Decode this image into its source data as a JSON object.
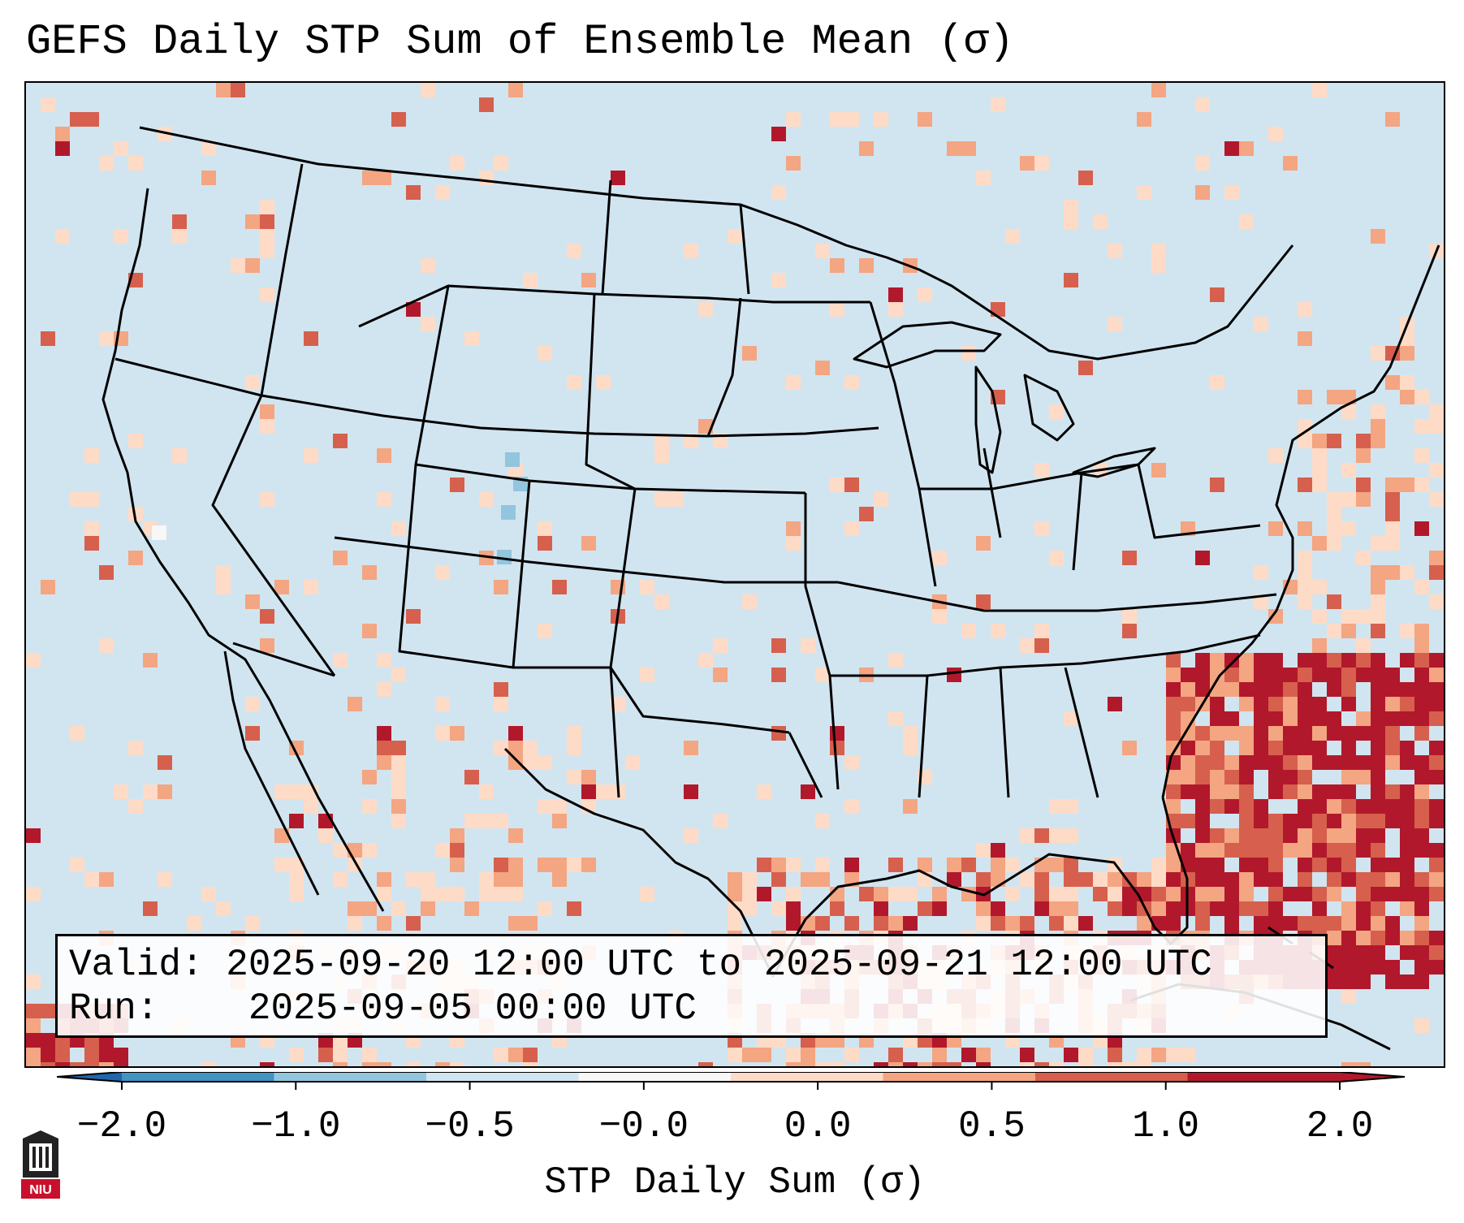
{
  "title": "GEFS Daily STP Sum of Ensemble Mean (σ)",
  "info": {
    "valid_prefix": "Valid:",
    "valid_value": "2025-09-20 12:00 UTC to 2025-09-21 12:00 UTC",
    "run_prefix": "Run:",
    "run_value": "2025-09-05 00:00 UTC"
  },
  "colorbar": {
    "label": "STP Daily Sum (σ)",
    "ticks": [
      "−2.0",
      "−1.0",
      "−0.5",
      "−0.0",
      "0.0",
      "0.5",
      "1.0",
      "2.0"
    ],
    "colors": [
      "#4393c3",
      "#92c5de",
      "#d1e5f0",
      "#f7f7f7",
      "#fddbc7",
      "#f4a582",
      "#d6604d",
      "#b2182b"
    ],
    "extend_low_color": "#2166ac",
    "extend_high_color": "#b2182b"
  },
  "map": {
    "background_color": "#d1e5f0",
    "region": "Contiguous United States, Mexico, Gulf of Mexico, Caribbean"
  },
  "logo": {
    "text": "NIU",
    "color": "#c8102e"
  }
}
